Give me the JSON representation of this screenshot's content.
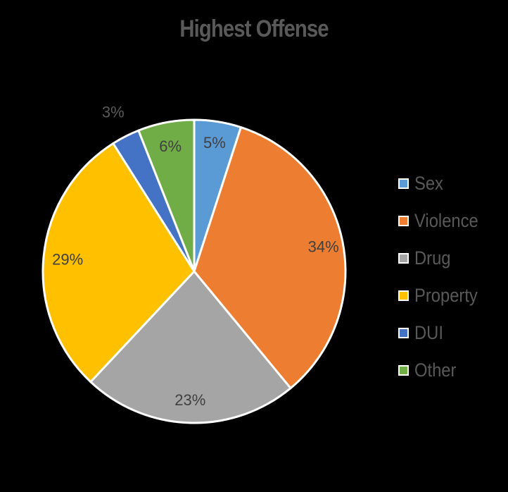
{
  "chart_data": {
    "type": "pie",
    "title": "Highest Offense",
    "legend_position": "right",
    "slices": [
      {
        "name": "Sex",
        "value": 5,
        "label": "5%",
        "color": "#5B9BD5",
        "label_color": "#404040"
      },
      {
        "name": "Violence",
        "value": 34,
        "label": "34%",
        "color": "#ED7D31",
        "label_color": "#404040"
      },
      {
        "name": "Drug",
        "value": 23,
        "label": "23%",
        "color": "#A5A5A5",
        "label_color": "#404040"
      },
      {
        "name": "Property",
        "value": 29,
        "label": "29%",
        "color": "#FFC000",
        "label_color": "#404040"
      },
      {
        "name": "DUI",
        "value": 3,
        "label": "3%",
        "color": "#4472C4",
        "label_color": "#595959"
      },
      {
        "name": "Other",
        "value": 6,
        "label": "6%",
        "color": "#70AD47",
        "label_color": "#404040"
      }
    ]
  }
}
